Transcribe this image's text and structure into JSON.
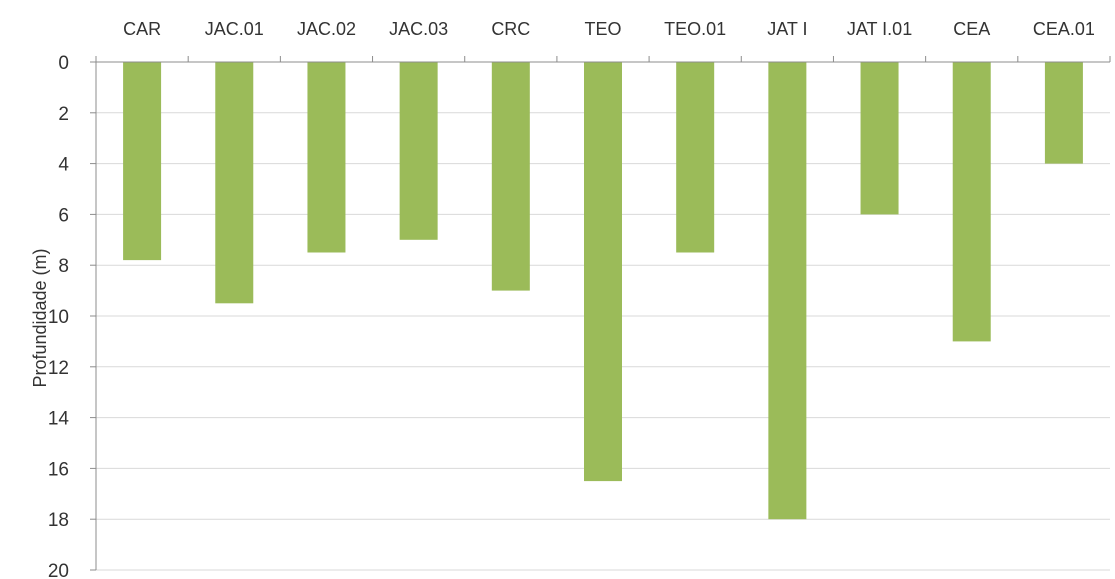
{
  "chart_data": {
    "type": "bar",
    "orientation": "vertical-downward",
    "categories": [
      "CAR",
      "JAC.01",
      "JAC.02",
      "JAC.03",
      "CRC",
      "TEO",
      "TEO.01",
      "JAT I",
      "JAT I.01",
      "CEA",
      "CEA.01"
    ],
    "values": [
      7.8,
      9.5,
      7.5,
      7.0,
      9.0,
      16.5,
      7.5,
      18.0,
      6.0,
      11.0,
      4.0
    ],
    "title": "",
    "xlabel": "",
    "ylabel": "Profundidade (m)",
    "ylim": [
      0,
      20
    ],
    "yticks": [
      0,
      2,
      4,
      6,
      8,
      10,
      12,
      14,
      16,
      18,
      20
    ],
    "y_inverted": true,
    "category_axis_position": "top",
    "grid": true,
    "legend": "none",
    "bar_color": "#9bbb59"
  }
}
